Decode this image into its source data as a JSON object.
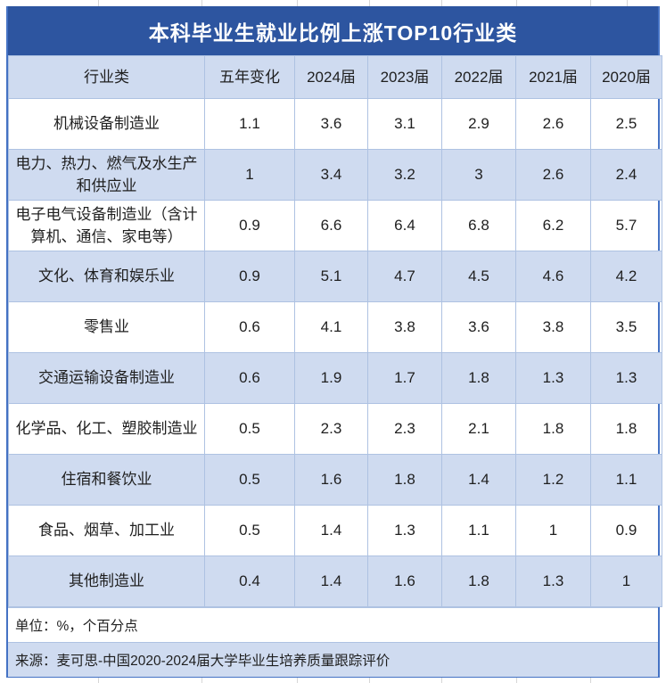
{
  "title": "本科毕业生就业比例上涨TOP10行业类",
  "table": {
    "headers": [
      "行业类",
      "五年变化",
      "2024届",
      "2023届",
      "2022届",
      "2021届",
      "2020届"
    ],
    "rows": [
      {
        "label": "机械设备制造业",
        "values": [
          "1.1",
          "3.6",
          "3.1",
          "2.9",
          "2.6",
          "2.5"
        ]
      },
      {
        "label": "电力、热力、燃气及水生产和供应业",
        "values": [
          "1",
          "3.4",
          "3.2",
          "3",
          "2.6",
          "2.4"
        ]
      },
      {
        "label": "电子电气设备制造业（含计算机、通信、家电等）",
        "values": [
          "0.9",
          "6.6",
          "6.4",
          "6.8",
          "6.2",
          "5.7"
        ]
      },
      {
        "label": "文化、体育和娱乐业",
        "values": [
          "0.9",
          "5.1",
          "4.7",
          "4.5",
          "4.6",
          "4.2"
        ]
      },
      {
        "label": "零售业",
        "values": [
          "0.6",
          "4.1",
          "3.8",
          "3.6",
          "3.8",
          "3.5"
        ]
      },
      {
        "label": "交通运输设备制造业",
        "values": [
          "0.6",
          "1.9",
          "1.7",
          "1.8",
          "1.3",
          "1.3"
        ]
      },
      {
        "label": "化学品、化工、塑胶制造业",
        "values": [
          "0.5",
          "2.3",
          "2.3",
          "2.1",
          "1.8",
          "1.8"
        ]
      },
      {
        "label": "住宿和餐饮业",
        "values": [
          "0.5",
          "1.6",
          "1.8",
          "1.4",
          "1.2",
          "1.1"
        ]
      },
      {
        "label": "食品、烟草、加工业",
        "values": [
          "0.5",
          "1.4",
          "1.3",
          "1.1",
          "1",
          "0.9"
        ]
      },
      {
        "label": "其他制造业",
        "values": [
          "0.4",
          "1.4",
          "1.6",
          "1.8",
          "1.3",
          "1"
        ]
      }
    ]
  },
  "footer": {
    "unit_note": "单位：%，个百分点",
    "source": "来源：麦可思-中国2020-2024届大学毕业生培养质量跟踪评价"
  },
  "colors": {
    "title_bar": "#2d55a0",
    "title_text": "#ffffff",
    "row_alt": "#cfdbf0",
    "grid_line": "#aec2e2",
    "outer_border": "#4472c4",
    "text": "#1f1f1f"
  },
  "chart_data": {
    "type": "table",
    "title": "本科毕业生就业比例上涨TOP10行业类",
    "columns": [
      "行业类",
      "五年变化",
      "2024届",
      "2023届",
      "2022届",
      "2021届",
      "2020届"
    ],
    "rows": [
      [
        "机械设备制造业",
        1.1,
        3.6,
        3.1,
        2.9,
        2.6,
        2.5
      ],
      [
        "电力、热力、燃气及水生产和供应业",
        1,
        3.4,
        3.2,
        3,
        2.6,
        2.4
      ],
      [
        "电子电气设备制造业（含计算机、通信、家电等）",
        0.9,
        6.6,
        6.4,
        6.8,
        6.2,
        5.7
      ],
      [
        "文化、体育和娱乐业",
        0.9,
        5.1,
        4.7,
        4.5,
        4.6,
        4.2
      ],
      [
        "零售业",
        0.6,
        4.1,
        3.8,
        3.6,
        3.8,
        3.5
      ],
      [
        "交通运输设备制造业",
        0.6,
        1.9,
        1.7,
        1.8,
        1.3,
        1.3
      ],
      [
        "化学品、化工、塑胶制造业",
        0.5,
        2.3,
        2.3,
        2.1,
        1.8,
        1.8
      ],
      [
        "住宿和餐饮业",
        0.5,
        1.6,
        1.8,
        1.4,
        1.2,
        1.1
      ],
      [
        "食品、烟草、加工业",
        0.5,
        1.4,
        1.3,
        1.1,
        1,
        0.9
      ],
      [
        "其他制造业",
        0.4,
        1.4,
        1.6,
        1.8,
        1.3,
        1
      ]
    ],
    "unit_note": "单位：%，个百分点",
    "source": "来源：麦可思-中国2020-2024届大学毕业生培养质量跟踪评价"
  }
}
